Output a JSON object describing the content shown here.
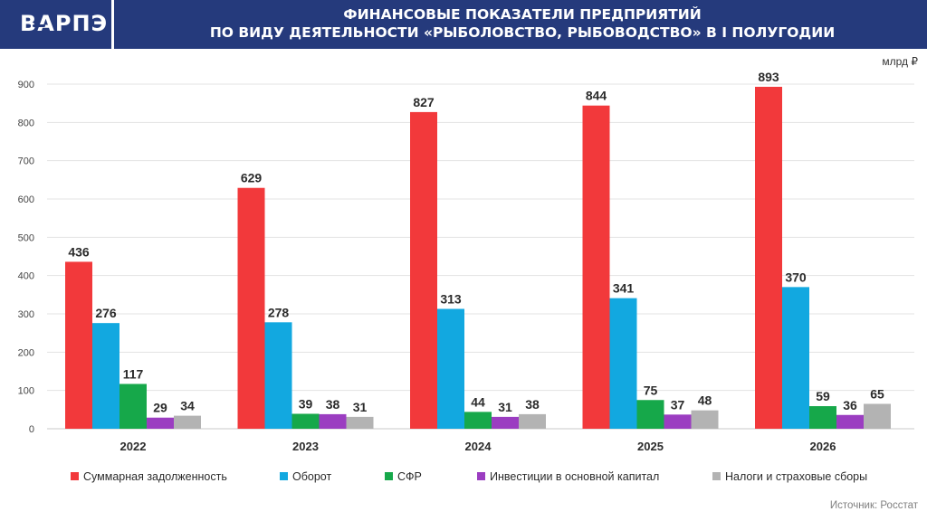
{
  "header": {
    "logo": "ВАРПЭ",
    "title_line1": "ФИНАНСОВЫЕ ПОКАЗАТЕЛИ ПРЕДПРИЯТИЙ",
    "title_line2": "ПО ВИДУ ДЕЯТЕЛЬНОСТИ «РЫБОЛОВСТВО, РЫБОВОДСТВО» В I ПОЛУГОДИИ"
  },
  "unit": "млрд ₽",
  "source": "Источник: Росстат",
  "chart_data": {
    "type": "bar",
    "categories": [
      "2022",
      "2023",
      "2024",
      "2025",
      "2026"
    ],
    "ylim": [
      0,
      900
    ],
    "yticks": [
      0,
      100,
      200,
      300,
      400,
      500,
      600,
      700,
      800,
      900
    ],
    "grid": true,
    "legend_position": "bottom",
    "series": [
      {
        "name": "Суммарная задолженность",
        "color": "#f2393b",
        "values": [
          436,
          629,
          827,
          844,
          893
        ]
      },
      {
        "name": "Оборот",
        "color": "#12a8e0",
        "values": [
          276,
          278,
          313,
          341,
          370
        ]
      },
      {
        "name": "СФР",
        "color": "#16a84a",
        "values": [
          117,
          39,
          44,
          75,
          59
        ]
      },
      {
        "name": "Инвестиции в основной капитал",
        "color": "#9b3dc1",
        "values": [
          29,
          38,
          31,
          37,
          36
        ]
      },
      {
        "name": "Налоги и страховые сборы",
        "color": "#b3b3b3",
        "values": [
          34,
          31,
          38,
          48,
          65
        ]
      }
    ]
  }
}
